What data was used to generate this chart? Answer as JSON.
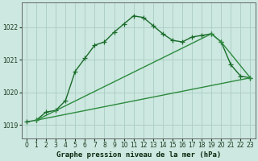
{
  "title": "Graphe pression niveau de la mer (hPa)",
  "background_color": "#cce8e0",
  "grid_color": "#aaccC4",
  "line_color_dark": "#1a6b2a",
  "line_color_mid": "#2d8a3e",
  "xlim": [
    -0.5,
    23.5
  ],
  "ylim": [
    1018.6,
    1022.75
  ],
  "yticks": [
    1019,
    1020,
    1021,
    1022
  ],
  "xticks": [
    0,
    1,
    2,
    3,
    4,
    5,
    6,
    7,
    8,
    9,
    10,
    11,
    12,
    13,
    14,
    15,
    16,
    17,
    18,
    19,
    20,
    21,
    22,
    23
  ],
  "series": [
    {
      "x": [
        0,
        1,
        2,
        3,
        4,
        5,
        6,
        7,
        8,
        9,
        10,
        11,
        12,
        13,
        14,
        15,
        16,
        17,
        18,
        19,
        20,
        21,
        22,
        23
      ],
      "y": [
        1019.1,
        1019.15,
        1019.4,
        1019.45,
        1019.75,
        1020.65,
        1021.05,
        1021.45,
        1021.55,
        1021.85,
        1022.1,
        1022.35,
        1022.3,
        1022.05,
        1021.8,
        1021.6,
        1021.55,
        1021.7,
        1021.75,
        1021.8,
        1021.55,
        1020.85,
        1020.5,
        1020.45
      ],
      "color": "#1a6b2a",
      "linewidth": 1.0,
      "marker": "+",
      "markersize": 4,
      "linestyle": "solid"
    },
    {
      "x": [
        1,
        23
      ],
      "y": [
        1019.15,
        1020.45
      ],
      "color": "#2d8a3e",
      "linewidth": 1.0,
      "marker": null,
      "markersize": 0,
      "linestyle": "solid"
    },
    {
      "x": [
        1,
        19,
        20,
        23
      ],
      "y": [
        1019.15,
        1021.8,
        1021.55,
        1020.45
      ],
      "color": "#2d8a3e",
      "linewidth": 1.0,
      "marker": "+",
      "markersize": 4,
      "linestyle": "solid"
    }
  ],
  "xlabel_fontsize": 6.5,
  "tick_fontsize": 5.5
}
